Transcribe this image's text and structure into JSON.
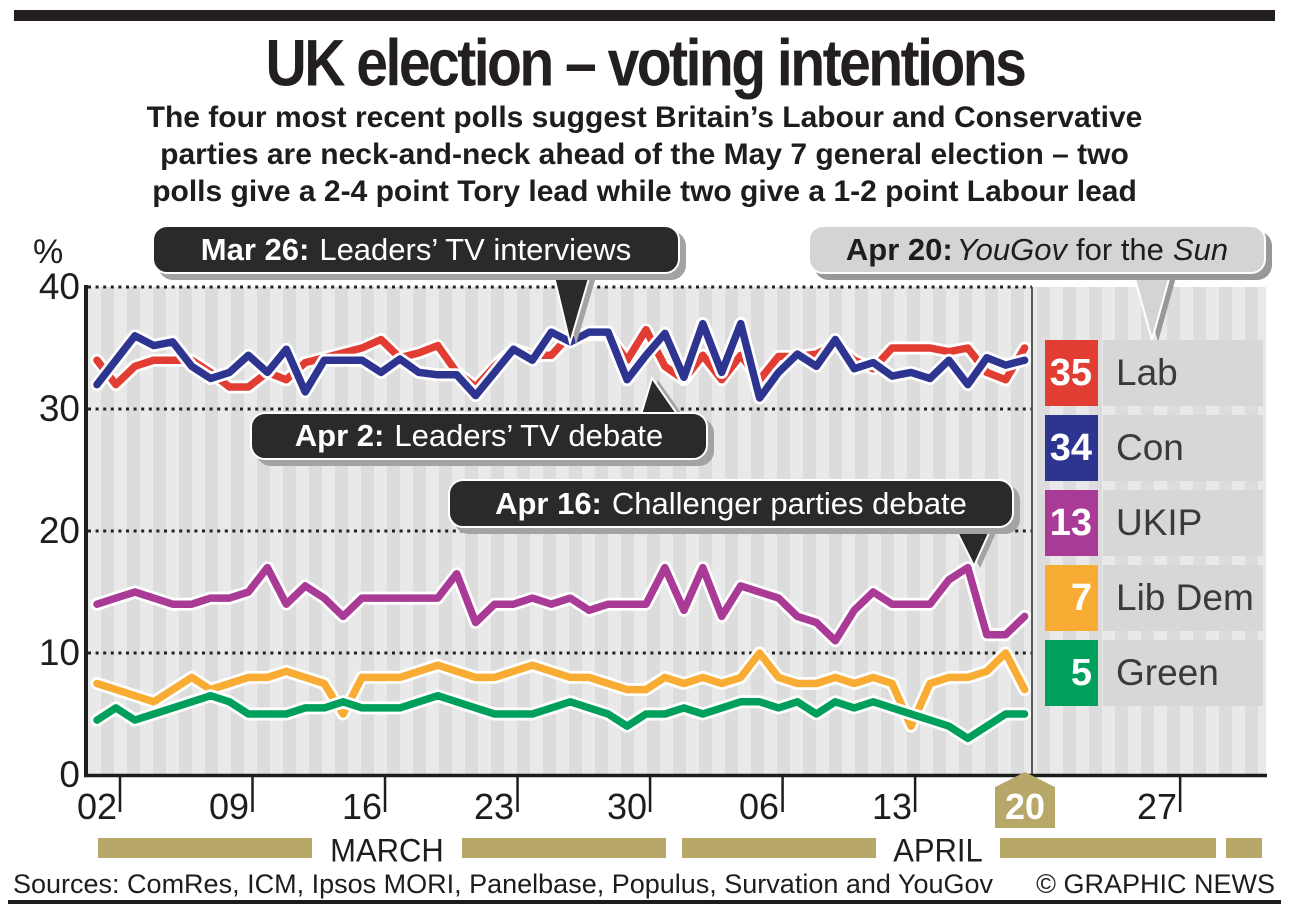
{
  "header": {
    "title": "UK election – voting intentions",
    "subtitle_lines": [
      "The four most recent polls suggest Britain’s Labour and Conservative",
      "parties are neck-and-neck ahead of the May 7 general election – two",
      "polls give a 2-4 point Tory lead while two give a 1-2 point Labour lead"
    ]
  },
  "axes": {
    "unit": "%",
    "yticks": [
      "40",
      "30",
      "20",
      "10",
      "0"
    ],
    "xticks": [
      "02",
      "09",
      "16",
      "23",
      "30",
      "06",
      "13",
      "20",
      "27"
    ],
    "months": [
      "MARCH",
      "APRIL"
    ],
    "highlighted_xtick": "20"
  },
  "callouts": {
    "mar26": {
      "prefix": "Mar 26:",
      "label": "Leaders’ TV interviews"
    },
    "apr2": {
      "prefix": "Apr 2:",
      "label": "Leaders’ TV debate"
    },
    "apr16": {
      "prefix": "Apr 16:",
      "label": "Challenger parties debate"
    },
    "apr20": {
      "prefix": "Apr 20:",
      "source": "YouGov",
      "mid": "for the",
      "paper": "Sun"
    }
  },
  "legend": {
    "items": [
      {
        "value": "35",
        "label": "Lab",
        "color": "#e23d33"
      },
      {
        "value": "34",
        "label": "Con",
        "color": "#2e3590"
      },
      {
        "value": "13",
        "label": "UKIP",
        "color": "#a93a96"
      },
      {
        "value": "7",
        "label": "Lib Dem",
        "color": "#f9ac33"
      },
      {
        "value": "5",
        "label": "Green",
        "color": "#00a05c"
      }
    ]
  },
  "footer": {
    "sources": "Sources: ComRes, ICM, Ipsos MORI, Panelbase, Populus, Survation and YouGov",
    "credit": "© GRAPHIC NEWS"
  },
  "chart_data": {
    "type": "line",
    "title": "UK election – voting intentions",
    "ylabel": "%",
    "ylim": [
      0,
      40
    ],
    "yticks": [
      0,
      10,
      20,
      30,
      40
    ],
    "grid": "dotted-horizontal",
    "legend_position": "right",
    "x_week_ticks": [
      "02",
      "09",
      "16",
      "23",
      "30",
      "06",
      "13",
      "20",
      "27"
    ],
    "months": [
      "MARCH",
      "APRIL"
    ],
    "dates": [
      "Mar 2",
      "Mar 3",
      "Mar 4",
      "Mar 5",
      "Mar 6",
      "Mar 7",
      "Mar 8",
      "Mar 9",
      "Mar 10",
      "Mar 11",
      "Mar 12",
      "Mar 13",
      "Mar 14",
      "Mar 15",
      "Mar 16",
      "Mar 17",
      "Mar 18",
      "Mar 19",
      "Mar 20",
      "Mar 21",
      "Mar 22",
      "Mar 23",
      "Mar 24",
      "Mar 25",
      "Mar 26",
      "Mar 27",
      "Mar 28",
      "Mar 29",
      "Mar 30",
      "Mar 31",
      "Apr 1",
      "Apr 2",
      "Apr 3",
      "Apr 4",
      "Apr 5",
      "Apr 6",
      "Apr 7",
      "Apr 8",
      "Apr 9",
      "Apr 10",
      "Apr 11",
      "Apr 12",
      "Apr 13",
      "Apr 14",
      "Apr 15",
      "Apr 16",
      "Apr 17",
      "Apr 18",
      "Apr 19",
      "Apr 20"
    ],
    "events": [
      {
        "date": "Mar 26",
        "label": "Leaders’ TV interviews"
      },
      {
        "date": "Apr 2",
        "label": "Leaders’ TV debate"
      },
      {
        "date": "Apr 16",
        "label": "Challenger parties debate"
      },
      {
        "date": "Apr 20",
        "label": "YouGov for the Sun"
      }
    ],
    "series": [
      {
        "name": "Lab",
        "color": "#e23d33",
        "latest": 35,
        "values": [
          34,
          32,
          33.5,
          34,
          34,
          34,
          33,
          31.8,
          31.8,
          33,
          32.4,
          33.8,
          34.2,
          34.6,
          35,
          35.7,
          34.2,
          34.6,
          35.2,
          33,
          31.8,
          33.5,
          34.9,
          34.4,
          34.4,
          36.1,
          36.1,
          36.1,
          34,
          36.5,
          33.5,
          32.4,
          34.4,
          32.4,
          34.4,
          32.4,
          34.3,
          34.3,
          34.5,
          35.3,
          34,
          33.3,
          35,
          35,
          35,
          34.7,
          35,
          33,
          32.4,
          35
        ]
      },
      {
        "name": "Con",
        "color": "#2e3590",
        "latest": 34,
        "values": [
          32,
          34,
          36,
          35.2,
          35.5,
          33.5,
          32.5,
          33,
          34.4,
          33,
          34.9,
          31.4,
          34,
          34,
          34,
          33,
          34.1,
          33,
          32.8,
          32.8,
          31.1,
          33,
          34.9,
          34,
          36.3,
          35.5,
          36.3,
          36.3,
          32.4,
          34.4,
          36.2,
          32.6,
          37,
          33,
          37,
          30.9,
          33,
          34.5,
          33.5,
          35.7,
          33.3,
          33.8,
          32.7,
          33,
          32.5,
          34,
          32,
          34.2,
          33.6,
          34
        ]
      },
      {
        "name": "UKIP",
        "color": "#a93a96",
        "latest": 13,
        "values": [
          14,
          14.5,
          15,
          14.5,
          14,
          14,
          14.5,
          14.5,
          15,
          17,
          14,
          15.5,
          14.5,
          13,
          14.5,
          14.5,
          14.5,
          14.5,
          14.5,
          16.5,
          12.5,
          14,
          14,
          14.5,
          14,
          14.5,
          13.5,
          14,
          14,
          14,
          17,
          13.5,
          17,
          13,
          15.5,
          15,
          14.5,
          13,
          12.5,
          11,
          13.5,
          15,
          14,
          14,
          14,
          16,
          17,
          11.5,
          11.5,
          13
        ]
      },
      {
        "name": "Lib Dem",
        "color": "#f9ac33",
        "latest": 7,
        "values": [
          7.5,
          7,
          6.5,
          6,
          7,
          8,
          7,
          7.5,
          8,
          8,
          8.5,
          8,
          7.5,
          5,
          8,
          8,
          8,
          8.5,
          9,
          8.5,
          8,
          8,
          8.5,
          9,
          8.5,
          8,
          8,
          7.5,
          7,
          7,
          8,
          7.5,
          8,
          7.5,
          8,
          10,
          8,
          7.5,
          7.5,
          8,
          7.5,
          8,
          7.5,
          4,
          7.5,
          8,
          8,
          8.5,
          10,
          7
        ]
      },
      {
        "name": "Green",
        "color": "#00a05c",
        "latest": 5,
        "values": [
          4.5,
          5.5,
          4.5,
          5,
          5.5,
          6,
          6.5,
          6,
          5,
          5,
          5,
          5.5,
          5.5,
          6,
          5.5,
          5.5,
          5.5,
          6,
          6.5,
          6,
          5.5,
          5,
          5,
          5,
          5.5,
          6,
          5.5,
          5,
          4,
          5,
          5,
          5.5,
          5,
          5.5,
          6,
          6,
          5.5,
          6,
          5,
          6,
          5.5,
          6,
          5.5,
          5,
          4.5,
          4,
          3,
          4,
          5,
          5
        ]
      }
    ]
  },
  "style": {
    "month_bar_color": "#b7a768",
    "grid_color": "#222222",
    "stripe_light": "#e9e9e9",
    "stripe_dark": "#dcdcdc"
  }
}
